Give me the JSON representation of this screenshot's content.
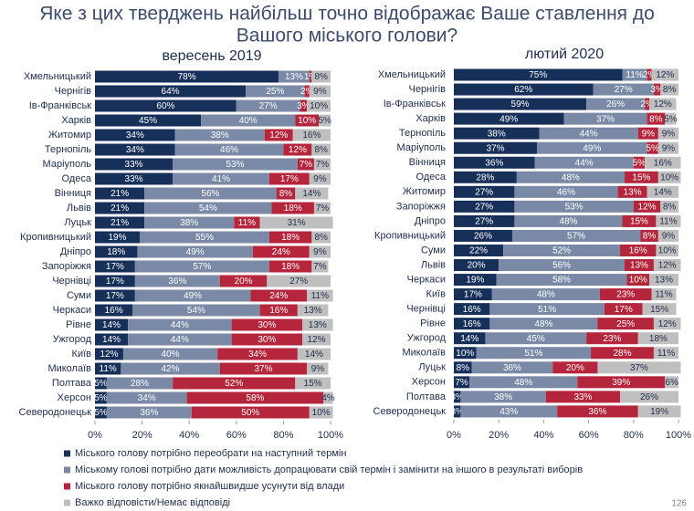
{
  "title": [
    "Яке з цих тверджень найбільш точно відображає Ваше ставлення до",
    "Вашого міського голови?"
  ],
  "page_number": "126",
  "chart_data": [
    {
      "type": "bar",
      "orientation": "horizontal",
      "stacked": true,
      "subtitle": "вересень 2019",
      "categories": [
        "Хмельницький",
        "Чернігів",
        "Ів-Франківськ",
        "Харків",
        "Житомир",
        "Тернопіль",
        "Маріуполь",
        "Одеса",
        "Вінниця",
        "Львів",
        "Луцьк",
        "Кропивницький",
        "Дніпро",
        "Запоріжжя",
        "Чернівці",
        "Суми",
        "Черкаси",
        "Рівне",
        "Ужгород",
        "Київ",
        "Миколаїв",
        "Полтава",
        "Херсон",
        "Северодонецьк"
      ],
      "series": [
        {
          "name": "Міського голову  потрібно переобрати на наступний термін",
          "color": "#17305a",
          "values": [
            78,
            64,
            60,
            45,
            34,
            34,
            33,
            33,
            21,
            21,
            21,
            19,
            18,
            17,
            17,
            17,
            16,
            14,
            14,
            12,
            11,
            5,
            5,
            5
          ],
          "value_labels": [
            "78%",
            "64%",
            "60%",
            "45%",
            "34%",
            "34%",
            "33%",
            "33%",
            "21%",
            "21%",
            "21%",
            "19%",
            "18%",
            "17%",
            "17%",
            "17%",
            "16%",
            "14%",
            "14%",
            "12%",
            "11%",
            "5%",
            "5%",
            "5%"
          ]
        },
        {
          "name": "Міському голові потрібно дати можливість допрацювати свій термін і замінити на іншого в результаті виборів",
          "color": "#7a8aa6",
          "values": [
            13,
            25,
            27,
            40,
            38,
            46,
            53,
            41,
            56,
            54,
            38,
            55,
            49,
            57,
            36,
            49,
            54,
            44,
            44,
            40,
            42,
            28,
            34,
            36
          ],
          "value_labels": [
            "13%",
            "25%",
            "27%",
            "40%",
            "38%",
            "46%",
            "53%",
            "41%",
            "56%",
            "54%",
            "38%",
            "55%",
            "49%",
            "57%",
            "36%",
            "49%",
            "54%",
            "44%",
            "44%",
            "40%",
            "42%",
            "28%",
            "34%",
            "36%"
          ]
        },
        {
          "name": "Міського голову потрібно якнайшвидше усунути від влади",
          "color": "#b5253b",
          "values": [
            1,
            2,
            3,
            10,
            12,
            12,
            7,
            17,
            8,
            18,
            11,
            18,
            24,
            18,
            20,
            24,
            16,
            30,
            30,
            34,
            37,
            52,
            58,
            50
          ],
          "value_labels": [
            "1%",
            "2%",
            "3%",
            "10%",
            "12%",
            "12%",
            "7%",
            "17%",
            "8%",
            "18%",
            "11%",
            "18%",
            "24%",
            "18%",
            "20%",
            "24%",
            "16%",
            "30%",
            "30%",
            "34%",
            "37%",
            "52%",
            "58%",
            "50%"
          ]
        },
        {
          "name": "Важко відповісти/Немає відповіді",
          "color": "#bfbfbf",
          "values": [
            8,
            9,
            10,
            5,
            16,
            8,
            7,
            9,
            14,
            7,
            31,
            8,
            9,
            7,
            27,
            11,
            13,
            13,
            12,
            14,
            9,
            15,
            4,
            10
          ],
          "value_labels": [
            "8%",
            "9%",
            "10%",
            "5%",
            "16%",
            "8%",
            "7%",
            "9%",
            "14%",
            "7%",
            "31%",
            "8%",
            "9%",
            "7%",
            "27%",
            "11%",
            "13%",
            "13%",
            "12%",
            "14%",
            "9%",
            "15%",
            "4%",
            "10%"
          ]
        }
      ],
      "xlim": [
        0,
        100
      ],
      "xticks": [
        {
          "value": 0,
          "label": "0%"
        },
        {
          "value": 20,
          "label": "20%"
        },
        {
          "value": 40,
          "label": "40%"
        },
        {
          "value": 60,
          "label": "60%"
        },
        {
          "value": 80,
          "label": "80%"
        },
        {
          "value": 100,
          "label": "100%"
        }
      ]
    },
    {
      "type": "bar",
      "orientation": "horizontal",
      "stacked": true,
      "subtitle": "лютий 2020",
      "categories": [
        "Хмельницький",
        "Чернігів",
        "Ів-Франківськ",
        "Харків",
        "Тернопіль",
        "Маріуполь",
        "Вінниця",
        "Одеса",
        "Житомир",
        "Запоріжжя",
        "Дніпро",
        "Кропивницький",
        "Суми",
        "Львів",
        "Черкаси",
        "Київ",
        "Чернівці",
        "Рівне",
        "Ужгород",
        "Миколаїв",
        "Луцьк",
        "Херсон",
        "Полтава",
        "Северодонецьк"
      ],
      "series": [
        {
          "color": "#17305a",
          "values": [
            75,
            62,
            59,
            49,
            38,
            37,
            36,
            28,
            27,
            27,
            27,
            26,
            22,
            20,
            19,
            17,
            16,
            16,
            14,
            10,
            8,
            7,
            3,
            3
          ],
          "value_labels": [
            "75%",
            "62%",
            "59%",
            "49%",
            "38%",
            "37%",
            "36%",
            "28%",
            "27%",
            "27%",
            "27%",
            "26%",
            "22%",
            "20%",
            "19%",
            "17%",
            "16%",
            "16%",
            "14%",
            "10%",
            "8%",
            "7%",
            "3%",
            "3%"
          ]
        },
        {
          "color": "#7a8aa6",
          "values": [
            11,
            27,
            26,
            37,
            44,
            49,
            44,
            48,
            46,
            53,
            48,
            57,
            52,
            56,
            58,
            48,
            51,
            48,
            45,
            51,
            36,
            48,
            38,
            43
          ],
          "value_labels": [
            "11%",
            "27%",
            "26%",
            "37%",
            "44%",
            "49%",
            "44%",
            "48%",
            "46%",
            "53%",
            "48%",
            "57%",
            "52%",
            "56%",
            "58%",
            "48%",
            "51%",
            "48%",
            "45%",
            "51%",
            "36%",
            "48%",
            "38%",
            "43%"
          ]
        },
        {
          "color": "#b5253b",
          "values": [
            2,
            3,
            2,
            8,
            9,
            5,
            5,
            15,
            13,
            12,
            15,
            8,
            16,
            13,
            10,
            23,
            17,
            25,
            23,
            28,
            20,
            39,
            33,
            36
          ],
          "value_labels": [
            "2%",
            "3%",
            "2%",
            "8%",
            "9%",
            "5%",
            "5%",
            "15%",
            "13%",
            "12%",
            "15%",
            "8%",
            "16%",
            "13%",
            "10%",
            "23%",
            "17%",
            "25%",
            "23%",
            "28%",
            "20%",
            "39%",
            "33%",
            "36%"
          ]
        },
        {
          "color": "#bfbfbf",
          "values": [
            12,
            8,
            12,
            5,
            9,
            9,
            16,
            10,
            14,
            8,
            11,
            9,
            10,
            12,
            13,
            11,
            15,
            12,
            18,
            11,
            37,
            6,
            26,
            19
          ],
          "value_labels": [
            "12%",
            "8%",
            "12%",
            "5%",
            "9%",
            "9%",
            "16%",
            "10%",
            "14%",
            "8%",
            "11%",
            "9%",
            "10%",
            "12%",
            "13%",
            "11%",
            "15%",
            "12%",
            "18%",
            "11%",
            "37%",
            "6%",
            "26%",
            "19%"
          ]
        }
      ],
      "xlim": [
        0,
        100
      ],
      "xticks": [
        {
          "value": 0,
          "label": "0%"
        },
        {
          "value": 20,
          "label": "20%"
        },
        {
          "value": 40,
          "label": "40%"
        },
        {
          "value": 60,
          "label": "60%"
        },
        {
          "value": 80,
          "label": "80%"
        },
        {
          "value": 100,
          "label": "100%"
        }
      ]
    }
  ]
}
